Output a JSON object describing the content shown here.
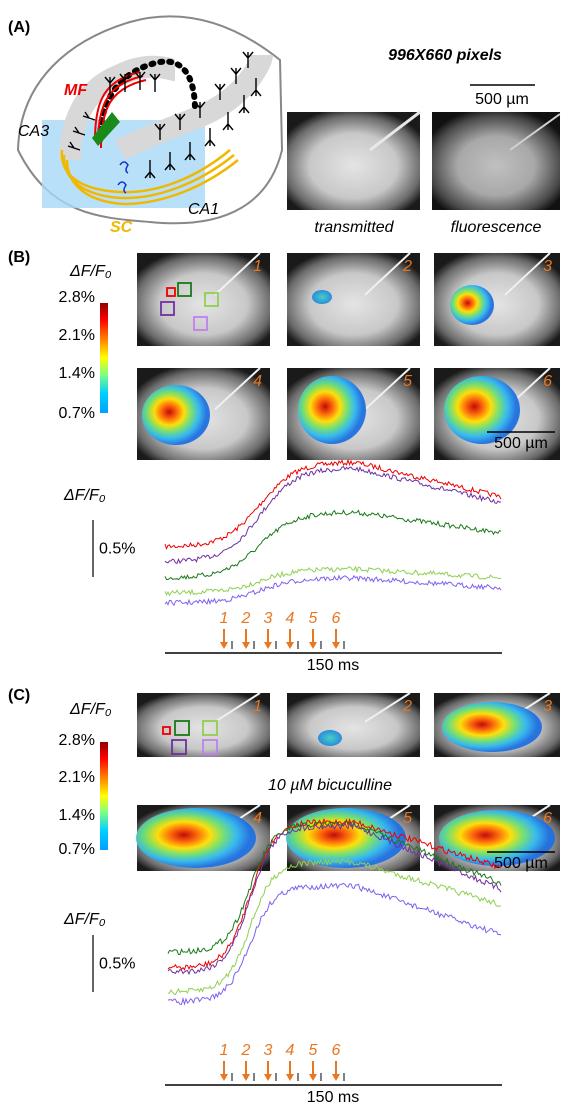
{
  "panel_a": {
    "label": "(A)",
    "schematic_labels": {
      "mf": "MF",
      "ca3": "CA3",
      "sc": "SC",
      "ca1": "CA1"
    },
    "image_size": "996X660 pixels",
    "scale_bar": "500 µm",
    "image_captions": [
      "transmitted",
      "fluorescence"
    ]
  },
  "panel_b": {
    "label": "(B)",
    "colorbar": {
      "title": "ΔF/F₀",
      "ticks": [
        "2.8%",
        "2.1%",
        "1.4%",
        "0.7%"
      ]
    },
    "frame_numbers": [
      "1",
      "2",
      "3",
      "4",
      "5",
      "6"
    ],
    "scale_bar": "500 µm",
    "traces": {
      "y_label": "ΔF/F₀",
      "scale_bar": "0.5%",
      "frame_markers": [
        "1",
        "2",
        "3",
        "4",
        "5",
        "6"
      ],
      "time_bar": "150 ms"
    }
  },
  "panel_c": {
    "label": "(C)",
    "colorbar": {
      "title": "ΔF/F₀",
      "ticks": [
        "2.8%",
        "2.1%",
        "1.4%",
        "0.7%"
      ]
    },
    "frame_numbers": [
      "1",
      "2",
      "3",
      "4",
      "5",
      "6"
    ],
    "scale_bar": "500 µm",
    "condition": "10 µM bicuculline",
    "traces": {
      "y_label": "ΔF/F₀",
      "scale_bar": "0.5%",
      "frame_markers": [
        "1",
        "2",
        "3",
        "4",
        "5",
        "6"
      ],
      "time_bar": "150 ms"
    }
  }
}
